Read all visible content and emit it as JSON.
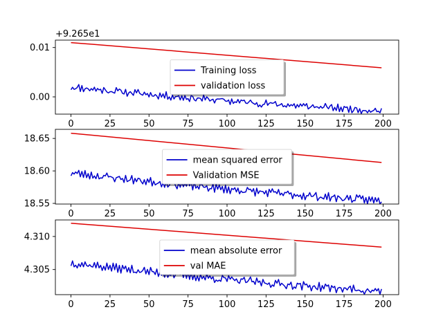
{
  "chart_data": [
    {
      "type": "line",
      "offset_label": "+9.265e1",
      "xlim": [
        -10,
        210
      ],
      "ylim": [
        -0.0035,
        0.0115
      ],
      "xticks": [
        0,
        25,
        50,
        75,
        100,
        125,
        150,
        175,
        200
      ],
      "yticks": [
        0.0,
        0.01
      ],
      "ytick_labels": [
        "0.00",
        "0.01"
      ],
      "legend_position": "center",
      "series": [
        {
          "name": "Training loss",
          "color": "#0000cc",
          "kind": "noisy",
          "start": 0.002,
          "end": -0.0028,
          "noise": 0.0006,
          "seed": 11
        },
        {
          "name": "validation loss",
          "color": "#dd0000",
          "kind": "linear",
          "start": 0.011,
          "end": 0.0059
        }
      ]
    },
    {
      "type": "line",
      "offset_label": "",
      "xlim": [
        -10,
        210
      ],
      "ylim": [
        18.549,
        18.664
      ],
      "xticks": [
        0,
        25,
        50,
        75,
        100,
        125,
        150,
        175,
        200
      ],
      "yticks": [
        18.55,
        18.6,
        18.65
      ],
      "ytick_labels": [
        "18.55",
        "18.60",
        "18.65"
      ],
      "legend_position": "center",
      "series": [
        {
          "name": "mean squared error",
          "color": "#0000cc",
          "kind": "noisy",
          "start": 18.597,
          "end": 18.554,
          "noise": 0.005,
          "seed": 23
        },
        {
          "name": "Validation MSE",
          "color": "#dd0000",
          "kind": "linear",
          "start": 18.658,
          "end": 18.613
        }
      ]
    },
    {
      "type": "line",
      "offset_label": "",
      "xlim": [
        -10,
        210
      ],
      "ylim": [
        4.3012,
        4.3125
      ],
      "xticks": [
        0,
        25,
        50,
        75,
        100,
        125,
        150,
        175,
        200
      ],
      "yticks": [
        4.305,
        4.31
      ],
      "ytick_labels": [
        "4.305",
        "4.310"
      ],
      "legend_position": "center",
      "series": [
        {
          "name": "mean absolute error",
          "color": "#0000cc",
          "kind": "noisy",
          "start": 4.306,
          "end": 4.3017,
          "noise": 0.0005,
          "seed": 37
        },
        {
          "name": "val MAE",
          "color": "#dd0000",
          "kind": "linear",
          "start": 4.312,
          "end": 4.3084
        }
      ]
    }
  ]
}
